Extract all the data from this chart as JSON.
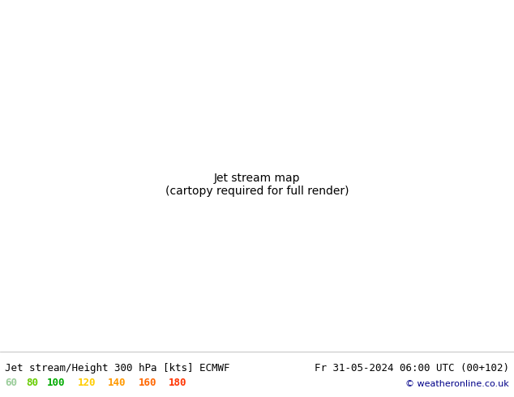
{
  "title_left": "Jet stream/Height 300 hPa [kts] ECMWF",
  "title_right": "Fr 31-05-2024 06:00 UTC (00+102)",
  "copyright": "© weatheronline.co.uk",
  "legend_values": [
    60,
    80,
    100,
    120,
    140,
    160,
    180
  ],
  "legend_colors": [
    "#99cc99",
    "#66cc00",
    "#00aa00",
    "#ffcc00",
    "#ff9900",
    "#ff6600",
    "#ff3300"
  ],
  "bg_color": "#e8e8e8",
  "map_bg": "#f0f0f0",
  "land_color": "#d8d8d8",
  "water_color": "#c8d8e8",
  "figsize": [
    6.34,
    4.9
  ],
  "dpi": 100,
  "bottom_bar_color": "#f0f0f0",
  "title_fontsize": 9,
  "legend_fontsize": 9
}
